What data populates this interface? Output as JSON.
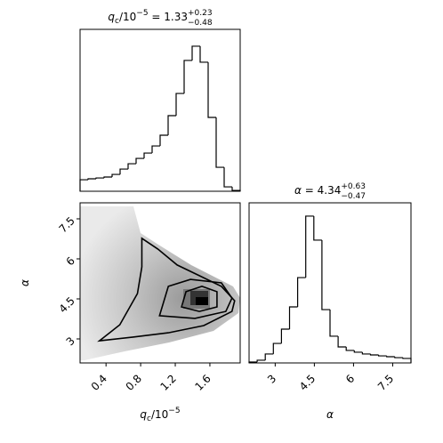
{
  "chart_data": [
    {
      "type": "histogram",
      "title": {
        "symbol": "q",
        "symbol_sub": "c",
        "unit": "/10",
        "unit_exp": "−5",
        "equals": " = 1.33",
        "plus": "+0.23",
        "minus": "−0.48"
      },
      "bins": [
        0.1,
        0.1925,
        0.285,
        0.3775,
        0.47,
        0.5625,
        0.655,
        0.7475,
        0.84,
        0.9325,
        1.025,
        1.1175,
        1.21,
        1.3025,
        1.395,
        1.4875,
        1.58,
        1.6725,
        1.765,
        1.8575,
        1.95
      ],
      "counts": [
        7.1,
        7.7,
        8.2,
        8.8,
        10.4,
        13.7,
        17,
        20.3,
        23.6,
        28,
        34.6,
        46.7,
        60.4,
        80.8,
        89.6,
        79.7,
        45.6,
        14.8,
        2.7,
        0.5
      ],
      "xlim": [
        0.1,
        1.95
      ],
      "ylim": [
        0,
        100
      ],
      "color": "#000000"
    },
    {
      "type": "contour",
      "xlabel": {
        "symbol": "q",
        "symbol_sub": "c",
        "unit": "/10",
        "unit_exp": "−5"
      },
      "ylabel": "α",
      "xlim": [
        0.1,
        1.95
      ],
      "ylim": [
        2.1,
        8.1
      ],
      "xticks": [
        0.4,
        0.8,
        1.2,
        1.6
      ],
      "yticks": [
        3.0,
        4.5,
        6.0,
        7.5
      ],
      "contours": [
        {
          "x": [
            0.324,
            0.559,
            0.763,
            0.814,
            0.814,
            0.998,
            1.222,
            1.478,
            1.733,
            1.886,
            1.855,
            1.529,
            1.12,
            0.712
          ],
          "y": [
            2.93,
            3.53,
            4.7,
            5.7,
            6.77,
            6.37,
            5.77,
            5.37,
            4.97,
            4.43,
            4.03,
            3.5,
            3.23,
            3.07
          ]
        },
        {
          "x": [
            1.018,
            1.12,
            1.376,
            1.733,
            1.855,
            1.784,
            1.427
          ],
          "y": [
            3.87,
            4.97,
            5.23,
            5.1,
            4.53,
            4.03,
            3.77
          ]
        },
        {
          "x": [
            1.273,
            1.324,
            1.508,
            1.682,
            1.682,
            1.478
          ],
          "y": [
            4.2,
            4.77,
            4.97,
            4.77,
            4.2,
            4.03
          ]
        }
      ],
      "color": "#000000"
    },
    {
      "type": "histogram",
      "title": {
        "symbol": "α",
        "equals": " = 4.34",
        "plus": "+0.63",
        "minus": "−0.47"
      },
      "xlabel": "α",
      "bins": [
        2.0,
        2.31,
        2.62,
        2.93,
        3.24,
        3.55,
        3.86,
        4.17,
        4.48,
        4.79,
        5.1,
        5.41,
        5.72,
        6.03,
        6.34,
        6.65,
        6.96,
        7.27,
        7.58,
        7.89,
        8.2
      ],
      "counts": [
        0.6,
        1.7,
        5.6,
        12.2,
        21.1,
        35,
        53.3,
        91.7,
        76.7,
        33.3,
        16.7,
        10,
        7.8,
        6.7,
        5.6,
        5,
        4.4,
        3.9,
        3.3,
        2.8
      ],
      "xlim": [
        2.0,
        8.2
      ],
      "ylim": [
        0,
        100
      ],
      "xticks": [
        3.0,
        4.5,
        6.0,
        7.5
      ],
      "color": "#000000"
    }
  ]
}
